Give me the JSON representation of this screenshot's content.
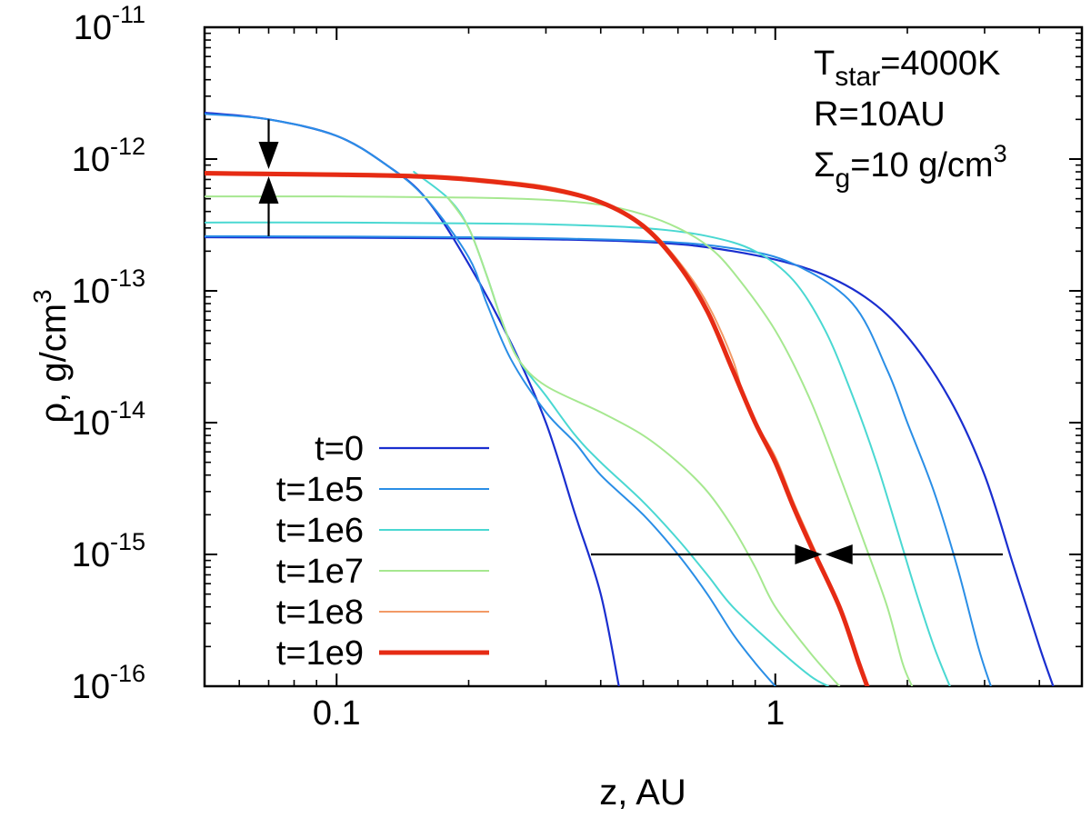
{
  "chart_data": {
    "type": "line",
    "xscale": "log",
    "yscale": "log",
    "xlabel": "z, AU",
    "ylabel": "ρ, g/cm",
    "ylabel_sup": "3",
    "xlim": [
      0.05,
      5.0
    ],
    "ylim": [
      1e-16,
      1e-11
    ],
    "x_ticks": [
      {
        "value": 0.1,
        "label": "0.1"
      },
      {
        "value": 1,
        "label": "1"
      }
    ],
    "y_ticks": [
      {
        "value": 1e-11,
        "base": "10",
        "exp": "-11"
      },
      {
        "value": 1e-12,
        "base": "10",
        "exp": "-12"
      },
      {
        "value": 1e-13,
        "base": "10",
        "exp": "-13"
      },
      {
        "value": 1e-14,
        "base": "10",
        "exp": "-14"
      },
      {
        "value": 1e-15,
        "base": "10",
        "exp": "-15"
      },
      {
        "value": 1e-16,
        "base": "10",
        "exp": "-16"
      }
    ],
    "annotations": [
      {
        "parts": [
          {
            "t": "T"
          },
          {
            "t": "star",
            "sub": true
          },
          {
            "t": "=4000K"
          }
        ]
      },
      {
        "parts": [
          {
            "t": "R=10AU"
          }
        ]
      },
      {
        "parts": [
          {
            "t": "Σ"
          },
          {
            "t": "g",
            "sub": true
          },
          {
            "t": "=10 g/cm"
          },
          {
            "t": "3",
            "sup": true
          }
        ]
      }
    ],
    "legend_position": "bottom-left",
    "series": [
      {
        "name": "t=0",
        "color": "#1a2ecf",
        "width": 2.2,
        "curves": [
          [
            [
              0.05,
              2.25e-12
            ],
            [
              0.07,
              2e-12
            ],
            [
              0.1,
              1.5e-12
            ],
            [
              0.13,
              9e-13
            ],
            [
              0.16,
              5e-13
            ],
            [
              0.2,
              1.6e-13
            ],
            [
              0.25,
              4e-14
            ],
            [
              0.3,
              1e-14
            ],
            [
              0.35,
              2e-15
            ],
            [
              0.4,
              5e-16
            ],
            [
              0.44,
              1e-16
            ]
          ],
          [
            [
              0.05,
              2.55e-13
            ],
            [
              0.2,
              2.5e-13
            ],
            [
              0.5,
              2.35e-13
            ],
            [
              0.8,
              2e-13
            ],
            [
              1.2,
              1.45e-13
            ],
            [
              1.6,
              9e-14
            ],
            [
              2.0,
              4.5e-14
            ],
            [
              2.5,
              1.5e-14
            ],
            [
              3.0,
              4e-15
            ],
            [
              3.5,
              8e-16
            ],
            [
              4.0,
              2e-16
            ],
            [
              4.3,
              1e-16
            ]
          ]
        ]
      },
      {
        "name": "t=1e5",
        "color": "#2a8ee6",
        "width": 2.0,
        "curves": [
          [
            [
              0.05,
              2.2e-12
            ],
            [
              0.07,
              2e-12
            ],
            [
              0.1,
              1.5e-12
            ],
            [
              0.13,
              9e-13
            ],
            [
              0.16,
              5e-13
            ],
            [
              0.2,
              1.8e-13
            ],
            [
              0.22,
              8e-14
            ],
            [
              0.25,
              3e-14
            ],
            [
              0.3,
              1.2e-14
            ],
            [
              0.35,
              7e-15
            ],
            [
              0.4,
              4e-15
            ],
            [
              0.5,
              2e-15
            ],
            [
              0.6,
              1e-15
            ],
            [
              0.7,
              5e-16
            ],
            [
              0.8,
              2.5e-16
            ],
            [
              0.9,
              1.5e-16
            ],
            [
              1.0,
              1e-16
            ]
          ],
          [
            [
              0.05,
              2.6e-13
            ],
            [
              0.2,
              2.55e-13
            ],
            [
              0.5,
              2.4e-13
            ],
            [
              0.8,
              2.1e-13
            ],
            [
              1.1,
              1.6e-13
            ],
            [
              1.5,
              8e-14
            ],
            [
              1.8,
              2.5e-14
            ],
            [
              2.0,
              1e-14
            ],
            [
              2.3,
              3e-15
            ],
            [
              2.6,
              8e-16
            ],
            [
              2.9,
              2e-16
            ],
            [
              3.1,
              1e-16
            ]
          ]
        ]
      },
      {
        "name": "t=1e6",
        "color": "#4ad8d2",
        "width": 2.0,
        "curves": [
          [
            [
              0.05,
              3.3e-13
            ],
            [
              0.1,
              3.3e-13
            ],
            [
              0.2,
              3.25e-13
            ],
            [
              0.3,
              3.2e-13
            ],
            [
              0.5,
              3e-13
            ],
            [
              0.7,
              2.6e-13
            ],
            [
              0.9,
              2e-13
            ],
            [
              1.1,
              1.2e-13
            ],
            [
              1.3,
              5e-14
            ],
            [
              1.5,
              1.6e-14
            ],
            [
              1.7,
              5e-15
            ],
            [
              1.9,
              1.5e-15
            ],
            [
              2.1,
              5e-16
            ],
            [
              2.3,
              2e-16
            ],
            [
              2.5,
              1e-16
            ]
          ],
          [
            [
              0.15,
              8e-13
            ],
            [
              0.18,
              5e-13
            ],
            [
              0.2,
              3e-13
            ],
            [
              0.22,
              1.3e-13
            ],
            [
              0.24,
              5.5e-14
            ],
            [
              0.26,
              3e-14
            ],
            [
              0.3,
              1.6e-14
            ],
            [
              0.35,
              8e-15
            ],
            [
              0.4,
              5e-15
            ],
            [
              0.5,
              2.5e-15
            ],
            [
              0.6,
              1.3e-15
            ],
            [
              0.7,
              7e-16
            ],
            [
              0.8,
              4e-16
            ],
            [
              1.0,
              2e-16
            ],
            [
              1.2,
              1.2e-16
            ],
            [
              1.32,
              1e-16
            ]
          ]
        ]
      },
      {
        "name": "t=1e7",
        "color": "#a6e890",
        "width": 2.0,
        "curves": [
          [
            [
              0.05,
              5.2e-13
            ],
            [
              0.1,
              5.2e-13
            ],
            [
              0.2,
              5.1e-13
            ],
            [
              0.3,
              4.9e-13
            ],
            [
              0.4,
              4.5e-13
            ],
            [
              0.5,
              3.8e-13
            ],
            [
              0.6,
              3e-13
            ],
            [
              0.7,
              2.2e-13
            ],
            [
              0.8,
              1.4e-13
            ],
            [
              1.0,
              5e-14
            ],
            [
              1.2,
              1.5e-14
            ],
            [
              1.4,
              4e-15
            ],
            [
              1.6,
              1.2e-15
            ],
            [
              1.8,
              4e-16
            ],
            [
              1.95,
              1.5e-16
            ],
            [
              2.05,
              1e-16
            ]
          ],
          [
            [
              0.18,
              5e-13
            ],
            [
              0.2,
              3e-13
            ],
            [
              0.22,
              1.3e-13
            ],
            [
              0.24,
              5.5e-14
            ],
            [
              0.26,
              3e-14
            ],
            [
              0.3,
              1.9e-14
            ],
            [
              0.4,
              1.2e-14
            ],
            [
              0.5,
              8e-15
            ],
            [
              0.6,
              5e-15
            ],
            [
              0.7,
              3e-15
            ],
            [
              0.8,
              1.6e-15
            ],
            [
              0.9,
              8e-16
            ],
            [
              1.0,
              4e-16
            ],
            [
              1.2,
              1.8e-16
            ],
            [
              1.4,
              1e-16
            ]
          ]
        ]
      },
      {
        "name": "t=1e8",
        "color": "#f29a66",
        "width": 2.0,
        "curves": [
          [
            [
              0.05,
              8e-13
            ],
            [
              0.1,
              7.8e-13
            ],
            [
              0.15,
              7.6e-13
            ],
            [
              0.2,
              7.2e-13
            ],
            [
              0.3,
              6.2e-13
            ],
            [
              0.4,
              4.8e-13
            ],
            [
              0.5,
              3.2e-13
            ],
            [
              0.6,
              1.7e-13
            ],
            [
              0.7,
              8e-14
            ],
            [
              0.8,
              3e-14
            ],
            [
              0.85,
              1.5e-14
            ],
            [
              0.9,
              1e-14
            ],
            [
              1.0,
              5.5e-15
            ],
            [
              1.1,
              2.5e-15
            ],
            [
              1.2,
              1.3e-15
            ],
            [
              1.4,
              4e-16
            ],
            [
              1.55,
              1.5e-16
            ],
            [
              1.62,
              1e-16
            ]
          ]
        ]
      },
      {
        "name": "t=1e9",
        "color": "#e62b14",
        "width": 5.0,
        "curves": [
          [
            [
              0.05,
              7.8e-13
            ],
            [
              0.1,
              7.6e-13
            ],
            [
              0.15,
              7.4e-13
            ],
            [
              0.2,
              7e-13
            ],
            [
              0.3,
              6e-13
            ],
            [
              0.4,
              4.7e-13
            ],
            [
              0.5,
              3.1e-13
            ],
            [
              0.6,
              1.6e-13
            ],
            [
              0.7,
              7e-14
            ],
            [
              0.8,
              2.5e-14
            ],
            [
              0.9,
              1e-14
            ],
            [
              1.0,
              5e-15
            ],
            [
              1.1,
              2.3e-15
            ],
            [
              1.2,
              1.2e-15
            ],
            [
              1.4,
              4e-16
            ],
            [
              1.55,
              1.5e-16
            ],
            [
              1.62,
              1e-16
            ]
          ]
        ]
      }
    ],
    "arrows": [
      {
        "name": "arrow-top-down",
        "from": [
          0.07,
          2e-12
        ],
        "to": [
          0.07,
          8.4e-13
        ]
      },
      {
        "name": "arrow-bottom-up",
        "from": [
          0.07,
          2.6e-13
        ],
        "to": [
          0.07,
          7.4e-13
        ]
      },
      {
        "name": "arrow-left-right",
        "from": [
          0.38,
          1e-15
        ],
        "to": [
          1.28,
          1e-15
        ]
      },
      {
        "name": "arrow-right-left",
        "from": [
          3.3,
          1e-15
        ],
        "to": [
          1.3,
          1e-15
        ]
      }
    ]
  }
}
